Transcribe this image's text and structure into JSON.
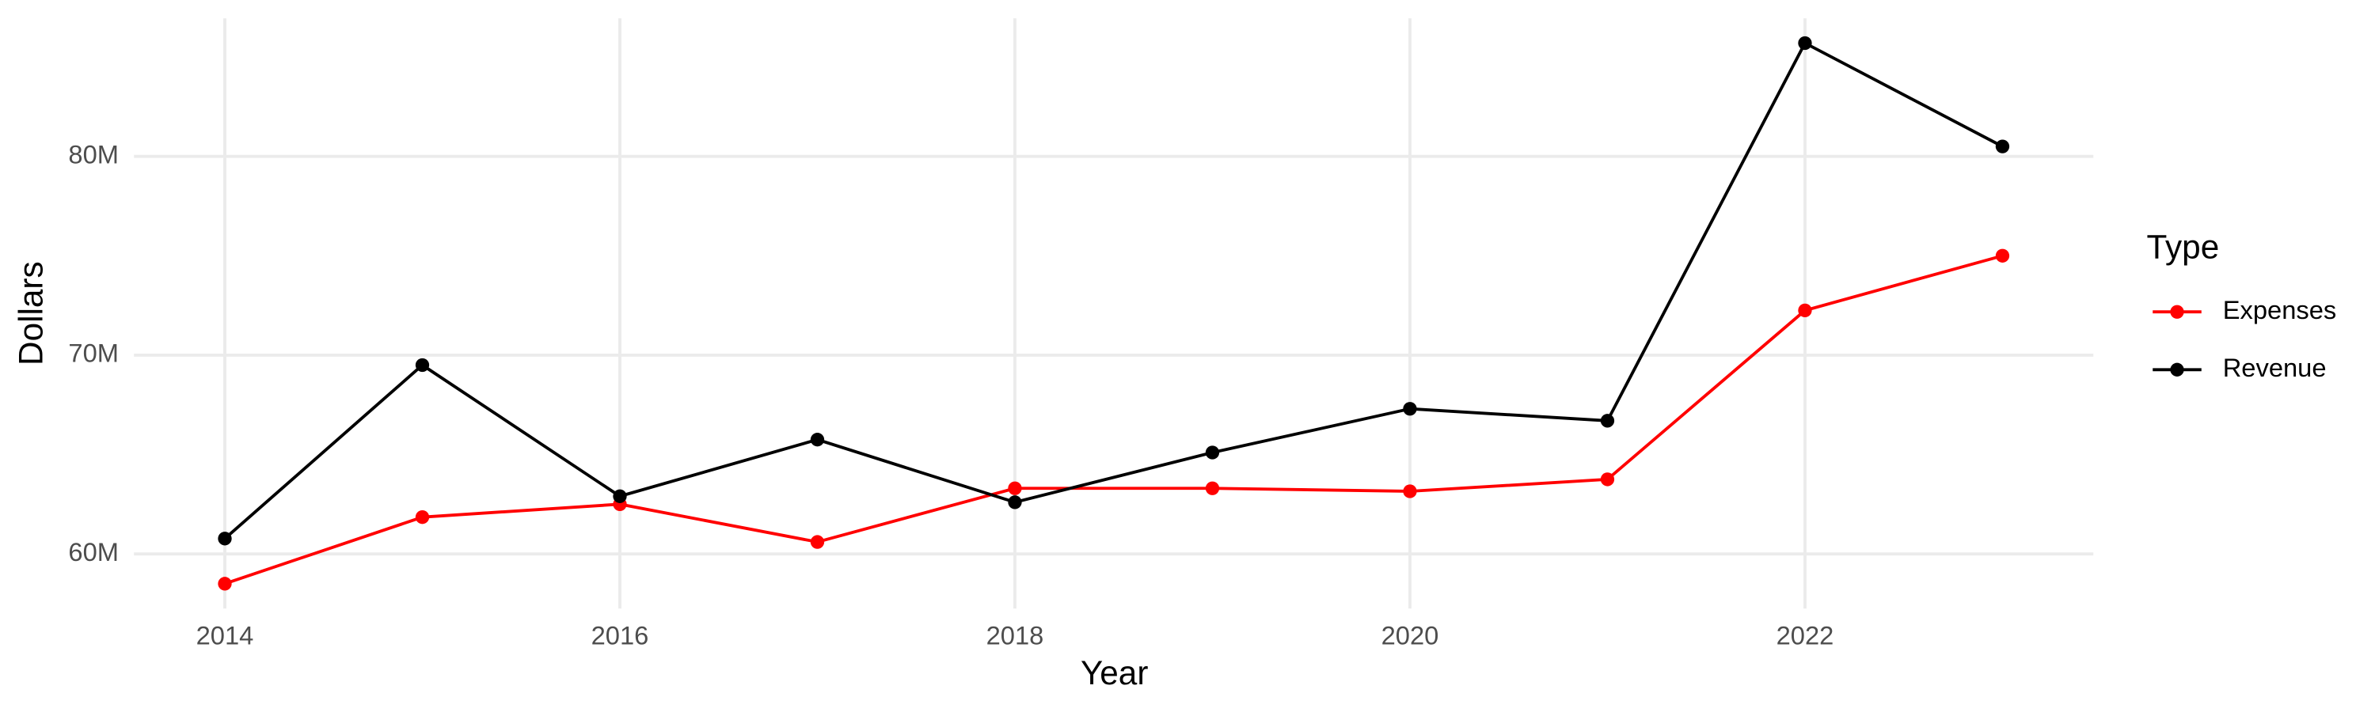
{
  "chart_data": {
    "type": "line",
    "x_label": "Year",
    "y_label": "Dollars",
    "x": [
      2014,
      2015,
      2016,
      2017,
      2018,
      2019,
      2020,
      2021,
      2022,
      2023
    ],
    "series": [
      {
        "name": "Expenses",
        "color": "#ff0000",
        "values": [
          58500000,
          61850000,
          62500000,
          60600000,
          63300000,
          63300000,
          63150000,
          63750000,
          72250000,
          75000000
        ]
      },
      {
        "name": "Revenue",
        "color": "#000000",
        "values": [
          60770000,
          69500000,
          62900000,
          65750000,
          62600000,
          65100000,
          67300000,
          66700000,
          85700000,
          80500000
        ]
      }
    ],
    "xlim": [
      2013.54,
      2023.46
    ],
    "xticks": [
      2014,
      2016,
      2018,
      2020,
      2022
    ],
    "ylim": [
      57250000,
      86950000
    ],
    "yticks": [
      {
        "value": 60000000,
        "label": "60M"
      },
      {
        "value": 70000000,
        "label": "70M"
      },
      {
        "value": 80000000,
        "label": "80M"
      }
    ],
    "grid": true,
    "legend": {
      "title": "Type",
      "position": "right"
    }
  }
}
